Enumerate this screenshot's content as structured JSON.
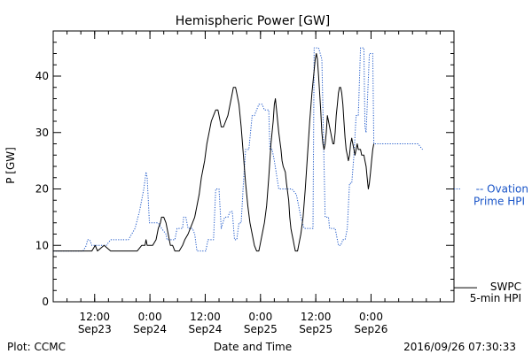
{
  "chart_data": {
    "type": "line",
    "title": "Hemispheric Power [GW]",
    "ylabel": "P [GW]",
    "xlabel": "Date and Time",
    "ylim": [
      0,
      48
    ],
    "xlim": [
      0,
      3.625
    ],
    "yticks": [
      0,
      10,
      20,
      30,
      40
    ],
    "xticks": [
      {
        "x": 0.375,
        "line1": "12:00",
        "line2": "Sep23"
      },
      {
        "x": 0.875,
        "line1": "0:00",
        "line2": "Sep24"
      },
      {
        "x": 1.375,
        "line1": "12:00",
        "line2": "Sep24"
      },
      {
        "x": 1.875,
        "line1": "0:00",
        "line2": "Sep25"
      },
      {
        "x": 2.375,
        "line1": "12:00",
        "line2": "Sep25"
      },
      {
        "x": 2.875,
        "line1": "0:00",
        "line2": "Sep26"
      }
    ],
    "series": [
      {
        "name": "Ovation Prime HPI",
        "color": "#1a55c8",
        "style": "dotted",
        "points": [
          [
            0.0,
            9
          ],
          [
            0.27,
            9
          ],
          [
            0.3,
            10
          ],
          [
            0.31,
            11
          ],
          [
            0.33,
            11
          ],
          [
            0.35,
            10
          ],
          [
            0.48,
            10
          ],
          [
            0.52,
            11
          ],
          [
            0.56,
            11
          ],
          [
            0.62,
            11
          ],
          [
            0.68,
            11
          ],
          [
            0.74,
            13
          ],
          [
            0.78,
            16
          ],
          [
            0.82,
            20
          ],
          [
            0.84,
            23
          ],
          [
            0.85,
            22
          ],
          [
            0.87,
            14
          ],
          [
            0.9,
            14
          ],
          [
            0.95,
            14
          ],
          [
            0.98,
            13
          ],
          [
            1.02,
            12
          ],
          [
            1.03,
            11
          ],
          [
            1.06,
            11
          ],
          [
            1.1,
            11
          ],
          [
            1.12,
            13
          ],
          [
            1.17,
            13
          ],
          [
            1.18,
            15
          ],
          [
            1.2,
            15
          ],
          [
            1.22,
            13
          ],
          [
            1.26,
            13
          ],
          [
            1.28,
            12
          ],
          [
            1.3,
            9
          ],
          [
            1.32,
            9
          ],
          [
            1.35,
            9
          ],
          [
            1.38,
            9
          ],
          [
            1.4,
            11
          ],
          [
            1.45,
            11
          ],
          [
            1.47,
            20
          ],
          [
            1.5,
            20
          ],
          [
            1.52,
            13
          ],
          [
            1.55,
            15
          ],
          [
            1.58,
            15
          ],
          [
            1.6,
            16
          ],
          [
            1.62,
            16
          ],
          [
            1.64,
            11
          ],
          [
            1.66,
            11
          ],
          [
            1.68,
            14
          ],
          [
            1.7,
            14
          ],
          [
            1.72,
            21
          ],
          [
            1.74,
            27
          ],
          [
            1.77,
            27
          ],
          [
            1.78,
            29
          ],
          [
            1.8,
            33
          ],
          [
            1.82,
            33
          ],
          [
            1.84,
            34
          ],
          [
            1.86,
            35
          ],
          [
            1.89,
            35
          ],
          [
            1.91,
            34
          ],
          [
            1.95,
            34
          ],
          [
            1.96,
            27
          ],
          [
            1.98,
            27
          ],
          [
            2.0,
            25
          ],
          [
            2.04,
            20
          ],
          [
            2.1,
            20
          ],
          [
            2.16,
            20
          ],
          [
            2.2,
            19
          ],
          [
            2.24,
            15
          ],
          [
            2.27,
            13
          ],
          [
            2.3,
            13
          ],
          [
            2.32,
            13
          ],
          [
            2.35,
            13
          ],
          [
            2.36,
            45
          ],
          [
            2.4,
            45
          ],
          [
            2.43,
            43
          ],
          [
            2.46,
            15
          ],
          [
            2.49,
            15
          ],
          [
            2.5,
            13
          ],
          [
            2.55,
            13
          ],
          [
            2.58,
            10
          ],
          [
            2.6,
            10
          ],
          [
            2.62,
            11
          ],
          [
            2.64,
            11
          ],
          [
            2.66,
            13
          ],
          [
            2.68,
            21
          ],
          [
            2.7,
            21
          ],
          [
            2.72,
            26
          ],
          [
            2.74,
            33
          ],
          [
            2.76,
            33
          ],
          [
            2.78,
            45
          ],
          [
            2.81,
            45
          ],
          [
            2.82,
            31
          ],
          [
            2.83,
            30
          ],
          [
            2.86,
            44
          ],
          [
            2.89,
            44
          ],
          [
            2.9,
            28
          ],
          [
            2.92,
            28
          ],
          [
            2.95,
            28
          ],
          [
            3.0,
            28
          ],
          [
            3.05,
            28
          ],
          [
            3.1,
            28
          ],
          [
            3.2,
            28
          ],
          [
            3.3,
            28
          ],
          [
            3.34,
            27
          ]
        ]
      },
      {
        "name": "SWPC 5-min HPI",
        "color": "#000000",
        "style": "solid",
        "points": [
          [
            0.0,
            9
          ],
          [
            0.3,
            9
          ],
          [
            0.35,
            9
          ],
          [
            0.38,
            10
          ],
          [
            0.4,
            9
          ],
          [
            0.46,
            10
          ],
          [
            0.52,
            9
          ],
          [
            0.58,
            9
          ],
          [
            0.62,
            9
          ],
          [
            0.7,
            9
          ],
          [
            0.76,
            9
          ],
          [
            0.8,
            10
          ],
          [
            0.83,
            10
          ],
          [
            0.84,
            11
          ],
          [
            0.85,
            10
          ],
          [
            0.87,
            10
          ],
          [
            0.9,
            10
          ],
          [
            0.93,
            11
          ],
          [
            0.95,
            13
          ],
          [
            0.97,
            14
          ],
          [
            0.98,
            15
          ],
          [
            1.0,
            15
          ],
          [
            1.02,
            14
          ],
          [
            1.04,
            12
          ],
          [
            1.06,
            10
          ],
          [
            1.08,
            10
          ],
          [
            1.1,
            9
          ],
          [
            1.12,
            9
          ],
          [
            1.14,
            9
          ],
          [
            1.17,
            10
          ],
          [
            1.19,
            11
          ],
          [
            1.22,
            12
          ],
          [
            1.24,
            13
          ],
          [
            1.26,
            14
          ],
          [
            1.28,
            15
          ],
          [
            1.3,
            17
          ],
          [
            1.32,
            19
          ],
          [
            1.34,
            22
          ],
          [
            1.37,
            25
          ],
          [
            1.39,
            28
          ],
          [
            1.41,
            30
          ],
          [
            1.43,
            32
          ],
          [
            1.45,
            33
          ],
          [
            1.47,
            34
          ],
          [
            1.49,
            34
          ],
          [
            1.51,
            32
          ],
          [
            1.52,
            31
          ],
          [
            1.54,
            31
          ],
          [
            1.56,
            32
          ],
          [
            1.58,
            33
          ],
          [
            1.6,
            35
          ],
          [
            1.62,
            37
          ],
          [
            1.63,
            38
          ],
          [
            1.65,
            38
          ],
          [
            1.66,
            37
          ],
          [
            1.68,
            35
          ],
          [
            1.7,
            31
          ],
          [
            1.72,
            26
          ],
          [
            1.74,
            21
          ],
          [
            1.76,
            17
          ],
          [
            1.78,
            14
          ],
          [
            1.8,
            12
          ],
          [
            1.82,
            10
          ],
          [
            1.84,
            9
          ],
          [
            1.86,
            9
          ],
          [
            1.87,
            10
          ],
          [
            1.89,
            12
          ],
          [
            1.91,
            14
          ],
          [
            1.93,
            17
          ],
          [
            1.95,
            22
          ],
          [
            1.97,
            28
          ],
          [
            1.99,
            32
          ],
          [
            2.0,
            35
          ],
          [
            2.01,
            36
          ],
          [
            2.02,
            34
          ],
          [
            2.04,
            30
          ],
          [
            2.06,
            27
          ],
          [
            2.07,
            25
          ],
          [
            2.08,
            24
          ],
          [
            2.1,
            23
          ],
          [
            2.11,
            21
          ],
          [
            2.13,
            18
          ],
          [
            2.14,
            15
          ],
          [
            2.15,
            13
          ],
          [
            2.16,
            12
          ],
          [
            2.17,
            11
          ],
          [
            2.18,
            10
          ],
          [
            2.19,
            9
          ],
          [
            2.21,
            9
          ],
          [
            2.22,
            10
          ],
          [
            2.24,
            12
          ],
          [
            2.26,
            15
          ],
          [
            2.28,
            20
          ],
          [
            2.3,
            26
          ],
          [
            2.32,
            32
          ],
          [
            2.34,
            37
          ],
          [
            2.36,
            41
          ],
          [
            2.37,
            43
          ],
          [
            2.38,
            44
          ],
          [
            2.39,
            43
          ],
          [
            2.4,
            40
          ],
          [
            2.41,
            37
          ],
          [
            2.42,
            34
          ],
          [
            2.43,
            30
          ],
          [
            2.44,
            28
          ],
          [
            2.45,
            27
          ],
          [
            2.46,
            28
          ],
          [
            2.47,
            30
          ],
          [
            2.48,
            33
          ],
          [
            2.49,
            32
          ],
          [
            2.5,
            31
          ],
          [
            2.51,
            30
          ],
          [
            2.52,
            29
          ],
          [
            2.53,
            28
          ],
          [
            2.54,
            28
          ],
          [
            2.55,
            30
          ],
          [
            2.56,
            33
          ],
          [
            2.57,
            35
          ],
          [
            2.58,
            37
          ],
          [
            2.59,
            38
          ],
          [
            2.6,
            38
          ],
          [
            2.61,
            37
          ],
          [
            2.62,
            35
          ],
          [
            2.63,
            32
          ],
          [
            2.64,
            29
          ],
          [
            2.65,
            27
          ],
          [
            2.66,
            26
          ],
          [
            2.67,
            25
          ],
          [
            2.68,
            26
          ],
          [
            2.69,
            28
          ],
          [
            2.7,
            29
          ],
          [
            2.71,
            28
          ],
          [
            2.72,
            27
          ],
          [
            2.73,
            26
          ],
          [
            2.74,
            27
          ],
          [
            2.75,
            28
          ],
          [
            2.76,
            27
          ],
          [
            2.77,
            27
          ],
          [
            2.78,
            27
          ],
          [
            2.79,
            26
          ],
          [
            2.8,
            26
          ],
          [
            2.81,
            26
          ],
          [
            2.82,
            25
          ],
          [
            2.83,
            24
          ],
          [
            2.84,
            22
          ],
          [
            2.85,
            20
          ],
          [
            2.86,
            21
          ],
          [
            2.87,
            23
          ],
          [
            2.88,
            25
          ],
          [
            2.89,
            27
          ],
          [
            2.9,
            28
          ]
        ]
      }
    ],
    "legend": [
      {
        "name": "Ovation Prime HPI",
        "line1": "-- Ovation",
        "line2": "Prime HPI",
        "color": "#1a55c8"
      },
      {
        "name": "SWPC 5-min HPI",
        "line1": "SWPC",
        "line2": "5-min HPI",
        "color": "#000000"
      }
    ]
  },
  "footer": {
    "left": "Plot: CCMC",
    "center": "Date and Time",
    "right": "2016/09/26 07:30:33"
  }
}
